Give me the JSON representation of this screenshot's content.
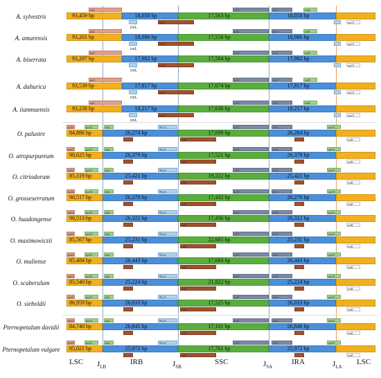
{
  "rows": [
    {
      "name": "A. sylvestris",
      "lsc": "93,459 bp",
      "irb": "18,058 bp",
      "ssc": "17,563 bp",
      "ira": "18,058 bp"
    },
    {
      "name": "A. amurensis",
      "lsc": "93,201 bp",
      "irb": "18,086 bp",
      "ssc": "17,558 bp",
      "ira": "18,086 bp"
    },
    {
      "name": "A. biserrata",
      "lsc": "93,297 bp",
      "irb": "17,982 bp",
      "ssc": "17,504 bp",
      "ira": "17,982 bp"
    },
    {
      "name": "A. dahurica",
      "lsc": "93,539 bp",
      "irb": "17,817 bp",
      "ssc": "17,674 bp",
      "ira": "17,817 bp"
    },
    {
      "name": "A. tianmuensis",
      "lsc": "93,238 bp",
      "irb": "18,217 bp",
      "ssc": "17,636 bp",
      "ira": "18,217 bp"
    },
    {
      "name": "O. palustre",
      "lsc": "84,886 bp",
      "irb": "26,274 bp",
      "ssc": "17,699 bp",
      "ira": "26,264 bp"
    },
    {
      "name": "O. atropurpureum",
      "lsc": "90,625 bp",
      "irb": "26,379 bp",
      "ssc": "17,521 bp",
      "ira": "26,379 bp"
    },
    {
      "name": "O. citriodorum",
      "lsc": "85,319 bp",
      "irb": "25,421 bp",
      "ssc": "19,222 bp",
      "ira": "25,421 bp"
    },
    {
      "name": "O. grosseserratum",
      "lsc": "90,517 bp",
      "irb": "26,270 bp",
      "ssc": "17,432 bp",
      "ira": "26,270 bp"
    },
    {
      "name": "O. huadongense",
      "lsc": "90,513 bp",
      "irb": "26,322 bp",
      "ssc": "17,436 bp",
      "ira": "26,322 bp"
    },
    {
      "name": "O. maximowiczii",
      "lsc": "85,567 bp",
      "irb": "25,231 bp",
      "ssc": "22,685 bp",
      "ira": "25,231 bp"
    },
    {
      "name": "O. muliense",
      "lsc": "85,484 bp",
      "irb": "26,443 bp",
      "ssc": "17,684 bp",
      "ira": "26,443 bp"
    },
    {
      "name": "O. scaberulum",
      "lsc": "85,540 bp",
      "irb": "25,224 bp",
      "ssc": "21,822 bp",
      "ira": "25,224 bp"
    },
    {
      "name": "O. sieboldii",
      "lsc": "86,959 bp",
      "irb": "26,033 bp",
      "ssc": "17,525 bp",
      "ira": "26,033 bp"
    },
    {
      "name": "Pternopetalum davidii",
      "lsc": "84,740 bp",
      "irb": "26,845 bp",
      "ssc": "17,101 bp",
      "ira": "26,846 bp"
    },
    {
      "name": "Pternopetalum vulgare",
      "lsc": "85,021 bp",
      "irb": "25,972 bp",
      "ssc": "17,761 bp",
      "ira": "25,972 bp"
    }
  ],
  "regions": [
    "LSC",
    "IRB",
    "SSC",
    "IRA",
    "LSC"
  ],
  "junctions": [
    {
      "main": "J",
      "sub": "LB"
    },
    {
      "main": "J",
      "sub": "SB"
    },
    {
      "main": "J",
      "sub": "SA"
    },
    {
      "main": "J",
      "sub": "LA"
    }
  ],
  "genes": {
    "trnL": "trnL",
    "ndhF": "ndhF",
    "ycf1": "ycf1",
    "rps19": "rps19",
    "rpl2": "rpl2",
    "trnH": "trnH",
    "rpl22": "rpl22",
    "psi_ycf1": "Ψycf1"
  },
  "colors": {
    "lsc": "#f2b01e",
    "ir": "#4b8fd9",
    "ssc": "#5aae3e",
    "gene_pink": "#e3a08a",
    "gene_gray": "#7a8aa6",
    "gene_green": "#9bd28a",
    "gene_brown": "#a0522d",
    "gene_lightblue": "#a9d4f2"
  }
}
